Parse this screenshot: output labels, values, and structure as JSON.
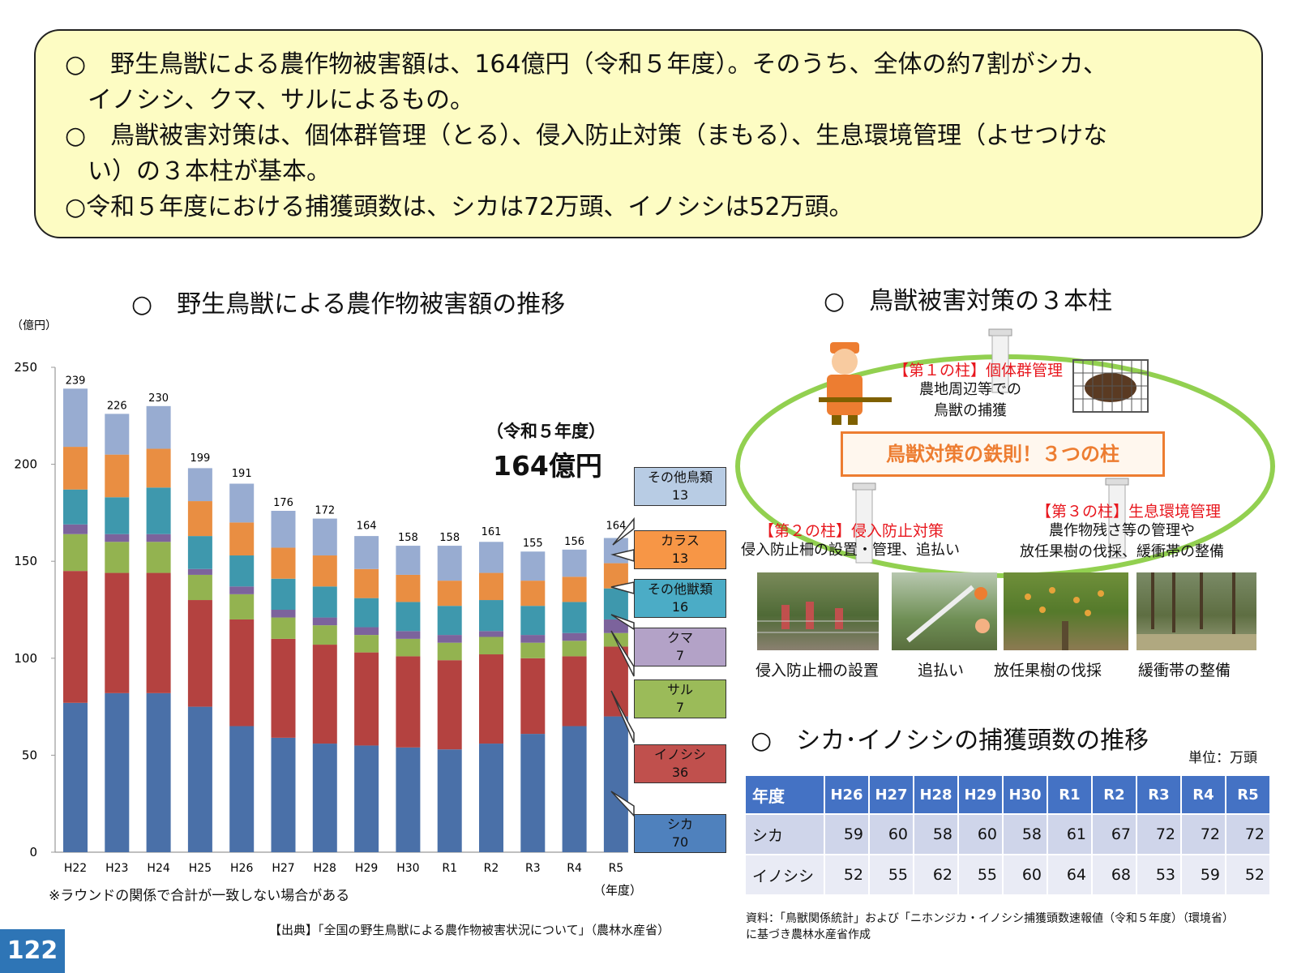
{
  "summary": [
    "○　野生鳥獣による農作物被害額は、164億円（令和５年度）。そのうち、全体の約7割がシカ、",
    "イノシシ、クマ、サルによるもの。",
    "○　鳥獣被害対策は、個体群管理（とる）、侵入防止対策（まもる）、生息環境管理（よせつけな",
    "い）の３本柱が基本。",
    "○令和５年度における捕獲頭数は、シカは72万頭、イノシシは52万頭。"
  ],
  "chart_section_title": "○　野生鳥獣による農作物被害額の推移",
  "chart_data": {
    "type": "bar",
    "stacked": true,
    "ylabel": "（億円）",
    "xlabel": "（年度）",
    "ylim": [
      0,
      250
    ],
    "yticks": [
      0,
      50,
      100,
      150,
      200,
      250
    ],
    "categories": [
      "H22",
      "H23",
      "H24",
      "H25",
      "H26",
      "H27",
      "H28",
      "H29",
      "H30",
      "R1",
      "R2",
      "R3",
      "R4",
      "R5"
    ],
    "totals": [
      239,
      226,
      230,
      199,
      191,
      176,
      172,
      164,
      158,
      158,
      161,
      155,
      156,
      164
    ],
    "series": [
      {
        "name": "シカ",
        "color": "#4a70a8",
        "values": [
          77,
          82,
          82,
          75,
          65,
          59,
          56,
          55,
          54,
          53,
          56,
          61,
          65,
          70
        ]
      },
      {
        "name": "イノシシ",
        "color": "#b44240",
        "values": [
          68,
          62,
          62,
          55,
          55,
          51,
          51,
          48,
          47,
          46,
          46,
          39,
          36,
          36
        ]
      },
      {
        "name": "サル",
        "color": "#93b350",
        "values": [
          19,
          16,
          16,
          13,
          13,
          11,
          10,
          9,
          9,
          9,
          9,
          8,
          8,
          7
        ]
      },
      {
        "name": "クマ",
        "color": "#7c639c",
        "values": [
          5,
          4,
          4,
          3,
          4,
          4,
          4,
          4,
          4,
          4,
          3,
          4,
          4,
          7
        ]
      },
      {
        "name": "その他獣類",
        "color": "#3e98ad",
        "values": [
          18,
          19,
          24,
          17,
          16,
          16,
          16,
          15,
          15,
          15,
          16,
          15,
          16,
          16
        ]
      },
      {
        "name": "カラス",
        "color": "#e98e42",
        "values": [
          22,
          22,
          20,
          18,
          17,
          16,
          16,
          15,
          14,
          13,
          14,
          13,
          13,
          13
        ]
      },
      {
        "name": "その他鳥類",
        "color": "#98acd1",
        "values": [
          30,
          21,
          22,
          17,
          20,
          19,
          19,
          17,
          15,
          18,
          16,
          15,
          14,
          13
        ]
      }
    ],
    "latest_label": "（令和５年度）",
    "latest_total": "164億円",
    "callouts": [
      {
        "name": "その他鳥類",
        "value": "13",
        "color": "#b8cce4"
      },
      {
        "name": "カラス",
        "value": "13",
        "color": "#f79646"
      },
      {
        "name": "その他獣類",
        "value": "16",
        "color": "#4bacc6"
      },
      {
        "name": "クマ",
        "value": "7",
        "color": "#b3a2c7"
      },
      {
        "name": "サル",
        "value": "7",
        "color": "#9bbb59"
      },
      {
        "name": "イノシシ",
        "value": "36",
        "color": "#c0504d"
      },
      {
        "name": "シカ",
        "value": "70",
        "color": "#4f81bd"
      }
    ],
    "note": "※ラウンドの関係で合計が一致しない場合がある"
  },
  "chart_source": "【出典】「全国の野生鳥獣による農作物被害状況について」（農林水産省）",
  "pillars": {
    "title": "○　鳥獣被害対策の３本柱",
    "motto": "鳥獣対策の鉄則！３つの柱",
    "p1": {
      "heading": "【第１の柱】個体群管理",
      "desc": [
        "農地周辺等での",
        "鳥獣の捕獲"
      ]
    },
    "p2": {
      "heading": "【第２の柱】侵入防止対策",
      "desc": [
        "侵入防止柵の設置・管理、追払い"
      ]
    },
    "p3": {
      "heading": "【第３の柱】生息環境管理",
      "desc": [
        "農作物残さ等の管理や",
        "放任果樹の伐採、緩衝帯の整備"
      ]
    },
    "photos": [
      "侵入防止柵の設置",
      "追払い",
      "放任果樹の伐採",
      "緩衝帯の整備"
    ]
  },
  "capture": {
    "title": "○　シカ･イノシシの捕獲頭数の推移",
    "unit": "単位：万頭",
    "header": [
      "年度",
      "H26",
      "H27",
      "H28",
      "H29",
      "H30",
      "R1",
      "R2",
      "R3",
      "R4",
      "R5"
    ],
    "rows": [
      [
        "シカ",
        "59",
        "60",
        "58",
        "60",
        "58",
        "61",
        "67",
        "72",
        "72",
        "72"
      ],
      [
        "イノシシ",
        "52",
        "55",
        "62",
        "55",
        "60",
        "64",
        "68",
        "53",
        "59",
        "52"
      ]
    ],
    "source": [
      "資料：「鳥獣関係統計」および「ニホンジカ・イノシシ捕獲頭数速報値（令和５年度）（環境省）",
      "に基づき農林水産省作成"
    ]
  },
  "page_number": "122"
}
